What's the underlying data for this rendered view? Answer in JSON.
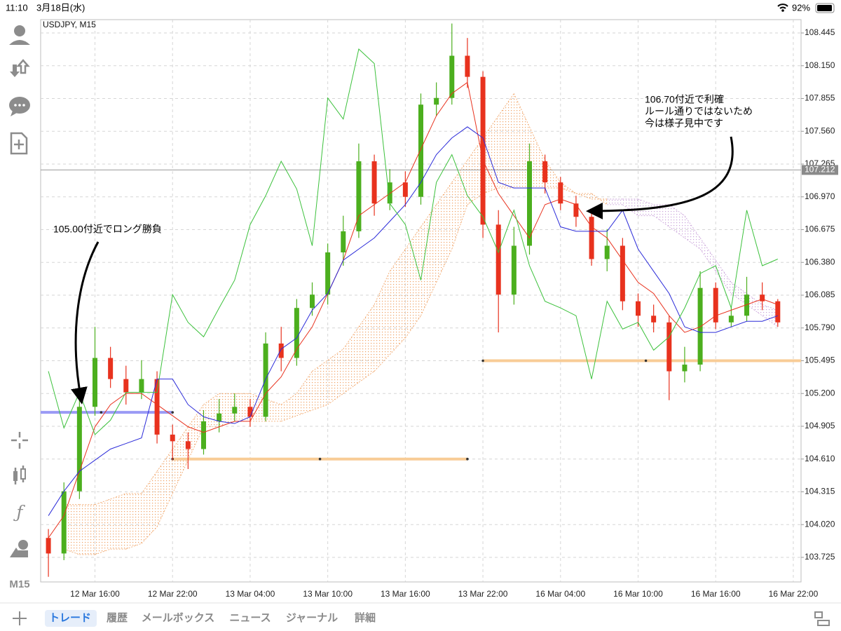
{
  "status_bar": {
    "time": "11:10",
    "date": "3月18日(水)",
    "battery": "92%"
  },
  "sidebar": {
    "timeframe": "M15"
  },
  "tabs": [
    "トレード",
    "履歴",
    "メールボックス",
    "ニュース",
    "ジャーナル",
    "詳細"
  ],
  "chart_data": {
    "type": "candlestick",
    "title": "USDJPY, M15",
    "categories": [
      null,
      null,
      null,
      "12 Mar 16:00",
      null,
      null,
      null,
      null,
      "12 Mar 22:00",
      null,
      null,
      null,
      null,
      "13 Mar 04:00",
      null,
      null,
      null,
      null,
      "13 Mar 10:00",
      null,
      null,
      null,
      null,
      "13 Mar 16:00",
      null,
      null,
      null,
      null,
      "13 Mar 22:00",
      null,
      null,
      null,
      null,
      "16 Mar 04:00",
      null,
      null,
      null,
      null,
      "16 Mar 10:00",
      null,
      null,
      null,
      null,
      "16 Mar 16:00",
      null,
      null,
      null,
      null,
      "16 Mar 22:00"
    ],
    "open": [
      103.9,
      103.76,
      104.32,
      105.08,
      105.52,
      105.33,
      105.21,
      105.33,
      104.83,
      104.77,
      104.7,
      104.95,
      105.02,
      105.08,
      104.99,
      105.65,
      105.52,
      105.97,
      106.09,
      106.47,
      106.66,
      107.29,
      106.91,
      107.1,
      106.97,
      107.8,
      107.86,
      108.24,
      108.05,
      106.72,
      106.09,
      106.53,
      107.29,
      107.1,
      106.91,
      106.79,
      106.41,
      106.53,
      106.03,
      105.9,
      105.84,
      105.4,
      105.46,
      106.15,
      105.84,
      105.9,
      106.09,
      106.03,
      null
    ],
    "high": [
      103.98,
      104.4,
      105.18,
      105.8,
      105.62,
      105.45,
      105.5,
      105.4,
      104.92,
      104.85,
      105.05,
      105.15,
      105.2,
      105.15,
      105.75,
      105.8,
      106.05,
      106.2,
      106.55,
      106.8,
      107.45,
      107.35,
      107.22,
      107.2,
      107.9,
      108.0,
      108.53,
      108.4,
      108.1,
      106.85,
      106.7,
      107.45,
      107.35,
      107.15,
      106.98,
      106.85,
      106.68,
      106.6,
      106.1,
      106.0,
      105.9,
      105.62,
      106.3,
      106.2,
      105.98,
      106.25,
      106.2,
      106.05,
      null
    ],
    "low": [
      103.55,
      103.7,
      104.25,
      105.0,
      105.25,
      105.1,
      105.15,
      104.75,
      104.6,
      104.52,
      104.65,
      104.85,
      104.95,
      104.9,
      104.95,
      105.4,
      105.45,
      105.9,
      106.0,
      106.35,
      106.6,
      106.8,
      106.85,
      106.88,
      106.9,
      107.7,
      107.8,
      107.95,
      106.6,
      105.75,
      106.0,
      106.45,
      107.0,
      106.85,
      106.7,
      106.35,
      106.3,
      105.95,
      105.8,
      105.75,
      105.14,
      105.3,
      105.4,
      105.78,
      105.8,
      105.85,
      105.95,
      105.8,
      null
    ],
    "close": [
      103.76,
      104.32,
      105.08,
      105.52,
      105.33,
      105.21,
      105.33,
      104.83,
      104.77,
      104.7,
      104.95,
      105.02,
      105.08,
      104.99,
      105.65,
      105.52,
      105.97,
      106.09,
      106.47,
      106.66,
      107.29,
      106.91,
      107.1,
      106.97,
      107.8,
      107.86,
      108.24,
      108.05,
      106.72,
      106.09,
      106.53,
      107.29,
      107.1,
      106.91,
      106.79,
      106.41,
      106.53,
      106.03,
      105.9,
      105.84,
      105.4,
      105.46,
      106.15,
      105.84,
      105.9,
      106.09,
      106.03,
      105.84,
      null
    ],
    "up_color": "#4caf1e",
    "down_color": "#e8321e",
    "lines": [
      {
        "color": "#e8321e",
        "values": [
          103.9,
          104.1,
          104.5,
          104.9,
          105.1,
          105.2,
          105.2,
          105.1,
          105.0,
          104.9,
          104.85,
          104.9,
          104.95,
          104.95,
          105.2,
          105.35,
          105.6,
          105.8,
          106.1,
          106.4,
          106.8,
          106.9,
          107.0,
          107.1,
          107.4,
          107.7,
          107.9,
          108.0,
          107.3,
          107.0,
          106.8,
          106.6,
          106.9,
          106.95,
          106.9,
          106.7,
          106.6,
          106.4,
          106.2,
          106.1,
          105.9,
          105.75,
          105.8,
          105.9,
          105.95,
          106.0,
          106.05,
          106.0,
          null
        ]
      },
      {
        "color": "#2b2bd9",
        "values": [
          104.1,
          104.32,
          104.5,
          104.6,
          104.7,
          104.75,
          104.8,
          105.33,
          105.33,
          105.1,
          104.99,
          104.95,
          104.93,
          104.99,
          105.33,
          105.6,
          105.7,
          105.95,
          106.1,
          106.4,
          106.5,
          106.6,
          106.75,
          106.9,
          107.1,
          107.35,
          107.5,
          107.6,
          107.5,
          107.1,
          107.05,
          107.05,
          107.05,
          106.7,
          106.66,
          106.66,
          106.66,
          106.85,
          106.5,
          106.3,
          106.1,
          105.8,
          105.75,
          105.75,
          105.8,
          105.85,
          105.85,
          105.9,
          null
        ]
      },
      {
        "color": "#3cc13c",
        "values": [
          105.4,
          104.89,
          105.21,
          104.83,
          104.96,
          105.21,
          105.21,
          105.21,
          106.09,
          105.84,
          105.71,
          105.97,
          106.22,
          106.72,
          106.98,
          107.29,
          107.04,
          106.53,
          107.86,
          107.67,
          108.3,
          108.17,
          106.91,
          106.72,
          106.22,
          107.1,
          107.35,
          106.98,
          106.79,
          106.47,
          106.85,
          106.35,
          106.03,
          105.97,
          105.9,
          105.33,
          106.03,
          105.78,
          105.84,
          105.59,
          105.71,
          105.97,
          106.28,
          106.35,
          105.97,
          106.85,
          106.35,
          106.41,
          null
        ]
      }
    ],
    "cloud": {
      "span_a": [
        null,
        104.2,
        104.2,
        104.2,
        104.25,
        104.3,
        104.3,
        104.5,
        104.7,
        104.9,
        105.1,
        105.2,
        105.2,
        105.2,
        105.15,
        105.1,
        105.2,
        105.4,
        105.5,
        105.6,
        105.8,
        106.0,
        106.3,
        106.5,
        106.7,
        106.9,
        107.1,
        107.3,
        107.5,
        107.7,
        107.9,
        107.6,
        107.3,
        107.1,
        107.0,
        107.0,
        106.9,
        106.9,
        106.8,
        106.8,
        106.7,
        106.6,
        106.5,
        106.3,
        106.1,
        106.0,
        105.9,
        105.8,
        null
      ],
      "span_b": [
        null,
        103.8,
        103.75,
        103.75,
        103.8,
        103.8,
        103.85,
        104.0,
        104.3,
        104.6,
        104.9,
        104.9,
        104.95,
        104.95,
        104.95,
        104.95,
        105.0,
        105.05,
        105.1,
        105.2,
        105.3,
        105.4,
        105.55,
        105.7,
        105.9,
        106.2,
        106.5,
        106.9,
        107.0,
        107.05,
        107.05,
        107.05,
        107.05,
        107.05,
        107.0,
        106.95,
        106.95,
        106.95,
        106.95,
        106.9,
        106.9,
        106.8,
        106.6,
        106.4,
        106.2,
        106.1,
        106.0,
        105.95,
        null
      ],
      "up_color": "#f0a060",
      "down_color": "#c8a0d8"
    },
    "levels": [
      {
        "value": 105.03,
        "color": "#9a9af5"
      },
      {
        "value": 104.61,
        "color": "#f8cc96"
      },
      {
        "value": 105.495,
        "color": "#f8cc96"
      }
    ],
    "price_line": 107.212,
    "ylim": [
      103.504,
      108.565
    ],
    "yticks": [
      103.725,
      {
        "value": 104.02,
        "label": "104.020"
      },
      104.315,
      {
        "value": 104.61,
        "label": "104.610"
      },
      104.905,
      {
        "value": 105.2,
        "label": "105.200"
      },
      105.495,
      {
        "value": 105.79,
        "label": "105.790"
      },
      106.085,
      {
        "value": 106.38,
        "label": "106.380"
      },
      106.675,
      {
        "value": 106.97,
        "label": "106.970"
      },
      107.265,
      {
        "value": 107.56,
        "label": "107.560"
      },
      107.855,
      {
        "value": 108.15,
        "label": "108.150"
      },
      108.445
    ],
    "grid": true,
    "annotations": [
      {
        "lines": [
          "105.00付近でロング勝負"
        ]
      },
      {
        "lines": [
          "106.70付近で利確",
          "ルール通りではないため",
          "今は様子見中です"
        ]
      }
    ]
  }
}
